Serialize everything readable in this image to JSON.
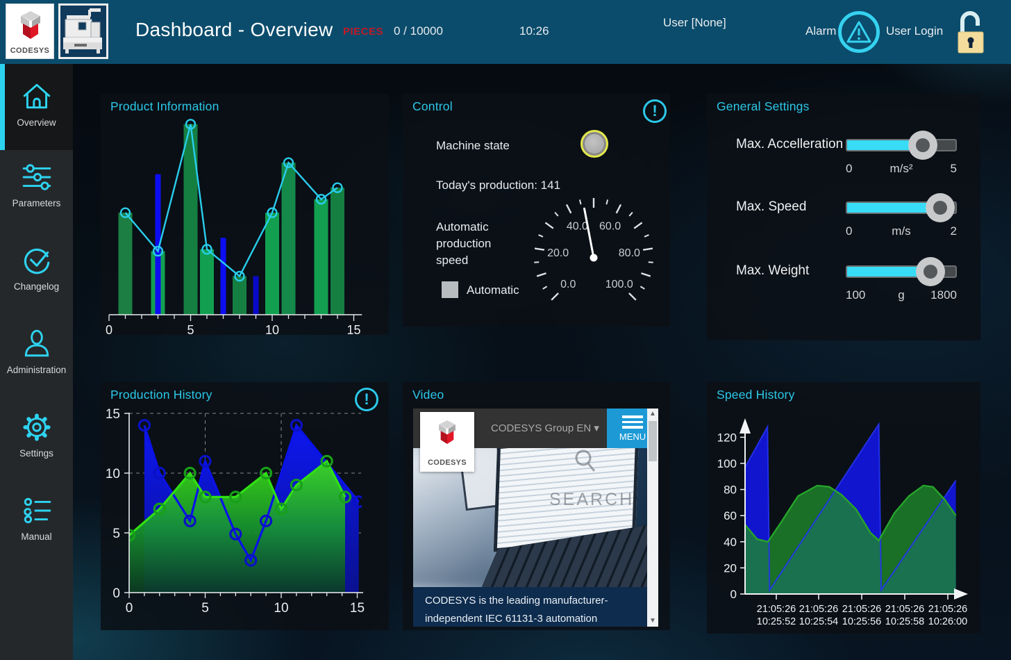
{
  "header": {
    "logo_text": "CODESYS",
    "title": "Dashboard - Overview",
    "pieces_label": "PIECES",
    "pieces_value": "0 / 10000",
    "time": "10:26",
    "user": "User [None]",
    "alarm_label": "Alarm",
    "user_login_label": "User Login"
  },
  "sidebar": {
    "items": [
      {
        "label": "Overview",
        "icon": "home",
        "active": true
      },
      {
        "label": "Parameters",
        "icon": "sliders",
        "active": false
      },
      {
        "label": "Changelog",
        "icon": "check-circle",
        "active": false
      },
      {
        "label": "Administration",
        "icon": "user",
        "active": false
      },
      {
        "label": "Settings",
        "icon": "gear",
        "active": false
      },
      {
        "label": "Manual",
        "icon": "list",
        "active": false
      }
    ]
  },
  "panels": {
    "product_information": {
      "title": "Product Information"
    },
    "control": {
      "title": "Control",
      "machine_state_label": "Machine state",
      "todays_production": "Today's production: 141",
      "auto_speed_label": "Automatic production speed",
      "automatic_label": "Automatic",
      "alert_glyph": "!"
    },
    "general_settings": {
      "title": "General Settings",
      "sliders": [
        {
          "label": "Max. Accelleration",
          "min": "0",
          "unit": "m/s²",
          "max": "5",
          "fill_percent": 70
        },
        {
          "label": "Max. Speed",
          "min": "0",
          "unit": "m/s",
          "max": "2",
          "fill_percent": 86
        },
        {
          "label": "Max. Weight",
          "min": "100",
          "unit": "g",
          "max": "1800",
          "fill_percent": 77
        }
      ],
      "track_fill_color": "#38dcf6"
    },
    "production_history": {
      "title": "Production History",
      "alert_glyph": "!"
    },
    "video": {
      "title": "Video",
      "site_nav": "CODESYS Group EN ▾",
      "menu_label": "MENU",
      "logo_text": "CODESYS",
      "search_label": "SEARCH",
      "caption_line1": "CODESYS is the leading manufacturer-",
      "caption_line2": "independent IEC 61131-3 automation",
      "scroll_up_glyph": "▲",
      "scroll_down_glyph": "▼"
    },
    "speed_history": {
      "title": "Speed History"
    }
  },
  "chart_data": [
    {
      "id": "product_information",
      "type": "bar",
      "title": "Product Information",
      "xlabel": "",
      "ylabel": "",
      "xlim": [
        0,
        15.5
      ],
      "ylim": [
        0,
        10.5
      ],
      "xticks": [
        0,
        5,
        10,
        15
      ],
      "grid": false,
      "bars_green": {
        "x": [
          1,
          3,
          5,
          6,
          8,
          10,
          11,
          13,
          14
        ],
        "values": [
          5.3,
          3.3,
          9.9,
          3.4,
          2.0,
          5.3,
          7.9,
          6.0,
          6.6
        ],
        "colors": [
          "#1c7e43",
          "#12a050",
          "#157f42",
          "#12a050",
          "#157f42",
          "#12a050",
          "#15894a",
          "#12a050",
          "#157f42"
        ]
      },
      "bars_blue": {
        "x": [
          3,
          7,
          9
        ],
        "values": [
          7.3,
          4.0,
          2.0
        ],
        "colors": [
          "#0d0df2",
          "#0d0df2",
          "#0909c8"
        ]
      },
      "line": {
        "x": [
          1,
          3,
          5,
          6,
          8,
          10,
          11,
          13,
          14
        ],
        "values": [
          5.3,
          3.3,
          9.9,
          3.4,
          2.0,
          5.3,
          7.9,
          6.0,
          6.6
        ],
        "color": "#29cdec"
      }
    },
    {
      "id": "production_history",
      "type": "area",
      "title": "Production History",
      "xlim": [
        0,
        15.5
      ],
      "ylim": [
        0,
        15
      ],
      "xticks": [
        0,
        5,
        10,
        15
      ],
      "yticks": [
        0,
        5,
        10,
        15
      ],
      "grid": "dashed",
      "series": [
        {
          "name": "blue",
          "x": [
            1,
            2,
            4,
            5,
            7,
            8,
            9,
            11,
            15.1
          ],
          "y": [
            14,
            10,
            6,
            11,
            4.9,
            2.7,
            6,
            14,
            7.6
          ],
          "line_color": "#0a12e8",
          "fill_top": "#0d17ef",
          "fill_bottom": "#0a1190",
          "marker_color": "#0a10c8"
        },
        {
          "name": "green",
          "x": [
            0,
            2,
            4,
            5,
            7,
            9,
            10,
            11,
            13,
            14.2
          ],
          "y": [
            4.8,
            7,
            10,
            8,
            8,
            10,
            7,
            9,
            11,
            8
          ],
          "line_color": "#2fe014",
          "fill_top": "#3fe414",
          "fill_mid": "#179a2f",
          "fill_bottom": "#0b3c22",
          "fill_opacity": 0.9,
          "marker_color": "#17a018"
        }
      ]
    },
    {
      "id": "speed_history",
      "type": "area",
      "title": "Speed History",
      "xlim": [
        0,
        9
      ],
      "ylim": [
        0,
        140
      ],
      "yticks": [
        0,
        20,
        40,
        60,
        80,
        100,
        120
      ],
      "xtick_labels": [
        [
          "21:05:26",
          "10:25:52"
        ],
        [
          "21:05:26",
          "10:25:54"
        ],
        [
          "21:05:26",
          "10:25:56"
        ],
        [
          "21:05:26",
          "10:25:58"
        ],
        [
          "21:05:26",
          "10:26:00"
        ]
      ],
      "blue": {
        "x": [
          0,
          0.93,
          1.02,
          5.55,
          5.65,
          8.75
        ],
        "y": [
          97,
          128,
          3,
          130,
          3,
          87
        ],
        "line_color": "#2533f0",
        "fill_color": "#1115cd"
      },
      "green": {
        "x": [
          0,
          0.5,
          0.95,
          1.5,
          2.2,
          3,
          3.5,
          4,
          4.6,
          5.2,
          5.55,
          6.2,
          6.8,
          7.4,
          7.8,
          8.3,
          8.75
        ],
        "y": [
          53,
          42,
          40,
          55,
          75,
          83,
          82,
          76,
          65,
          47,
          41,
          62,
          75,
          83,
          82,
          72,
          60
        ],
        "line_color": "#27a42b",
        "fill_color": "#1e8c2c",
        "fill_opacity": 0.78
      }
    },
    {
      "id": "control_gauge",
      "type": "gauge",
      "min": 0,
      "max": 100,
      "value": 46,
      "minor_tick_step": 5,
      "major_tick_step": 10,
      "label_values": [
        0,
        20,
        40,
        60,
        80,
        100
      ],
      "labels": [
        "0.0",
        "20.0",
        "40.0",
        "60.0",
        "80.0",
        "100.0"
      ],
      "start_angle_deg": 225,
      "end_angle_deg": -45,
      "needle_color": "#ffffff",
      "tick_color": "#dfe3e6",
      "label_color": "#c9cdd2"
    }
  ]
}
